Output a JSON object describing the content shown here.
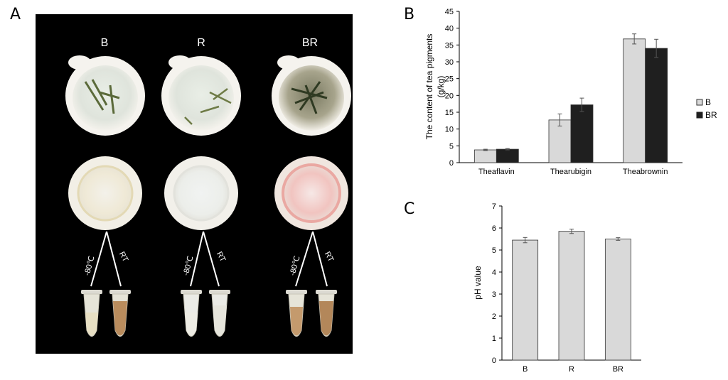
{
  "panels": {
    "a": "A",
    "b": "B",
    "c": "C"
  },
  "photo": {
    "columns": [
      "B",
      "R",
      "BR"
    ],
    "tube_labels": [
      "-80℃",
      "RT"
    ]
  },
  "colors": {
    "B": "#d9d9d9",
    "BR": "#1f1f1f",
    "pH": "#d9d9d9",
    "photo_bg": "#000000"
  },
  "chart_data": [
    {
      "type": "bar",
      "categories": [
        "Theaflavin",
        "Thearubigin",
        "Theabrownin"
      ],
      "series": [
        {
          "name": "B",
          "values": [
            3.8,
            12.7,
            36.8
          ],
          "errors": [
            0.2,
            1.8,
            1.5
          ]
        },
        {
          "name": "BR",
          "values": [
            4.0,
            17.2,
            34.0
          ],
          "errors": [
            0.2,
            2.0,
            2.7
          ]
        }
      ],
      "title": "",
      "xlabel": "",
      "ylabel": "The content of tea pigments (g/kg)",
      "ylabel_lines": [
        "The content of tea pigments",
        "(g/kg)"
      ],
      "ylim": [
        0,
        45
      ],
      "yticks": [
        0,
        5,
        10,
        15,
        20,
        25,
        30,
        35,
        40,
        45
      ],
      "legend": "right",
      "grid": false
    },
    {
      "type": "bar",
      "categories": [
        "B",
        "R",
        "BR"
      ],
      "series": [
        {
          "values": [
            5.45,
            5.85,
            5.5
          ],
          "errors": [
            0.12,
            0.1,
            0.06
          ]
        }
      ],
      "title": "",
      "xlabel": "",
      "ylabel": "pH value",
      "ylim": [
        0,
        7
      ],
      "yticks": [
        0,
        1,
        2,
        3,
        4,
        5,
        6,
        7
      ],
      "legend": "none",
      "grid": false
    }
  ]
}
